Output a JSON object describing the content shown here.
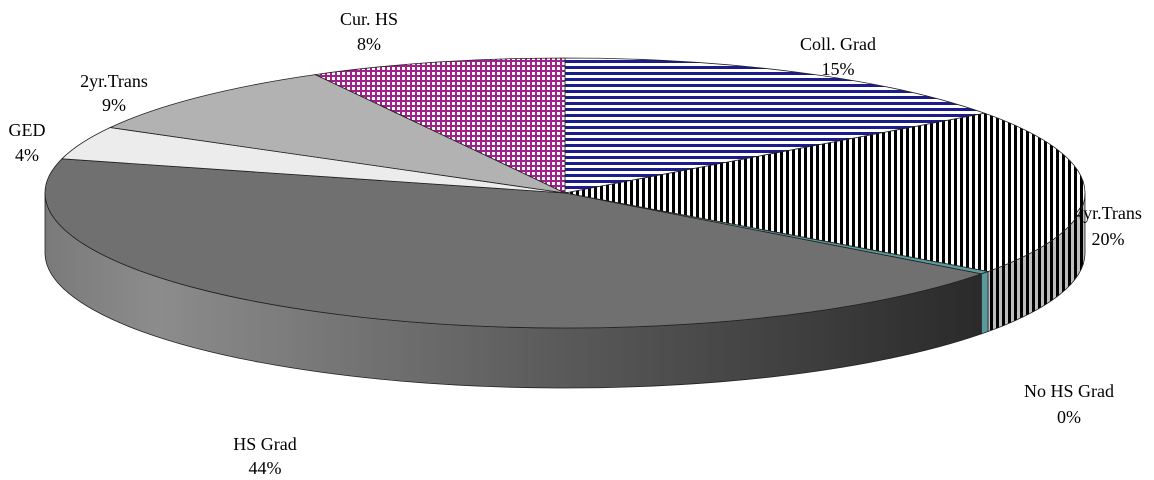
{
  "chart_data": {
    "type": "pie",
    "title": "",
    "slices": [
      {
        "label": "Coll. Grad",
        "percent_label": "15%",
        "value": 15,
        "color": "#1c1c8c",
        "pattern": "hstripe"
      },
      {
        "label": "4yr.Trans",
        "percent_label": "20%",
        "value": 20,
        "color": "#000000",
        "pattern": "vstripe"
      },
      {
        "label": "No HS Grad",
        "percent_label": "0%",
        "value": 0.35,
        "color": "#5a9a9a",
        "pattern": "solid"
      },
      {
        "label": "HS Grad",
        "percent_label": "44%",
        "value": 44,
        "color": "#707070",
        "pattern": "solid"
      },
      {
        "label": "GED",
        "percent_label": "4%",
        "value": 4,
        "color": "#ececec",
        "pattern": "solid"
      },
      {
        "label": "2yr.Trans",
        "percent_label": "9%",
        "value": 9,
        "color": "#b2b2b2",
        "pattern": "solid"
      },
      {
        "label": "Cur. HS",
        "percent_label": "8%",
        "value": 8,
        "color": "#a0208c",
        "pattern": "grid"
      }
    ],
    "legend": "none",
    "style": "3d-tilted"
  }
}
